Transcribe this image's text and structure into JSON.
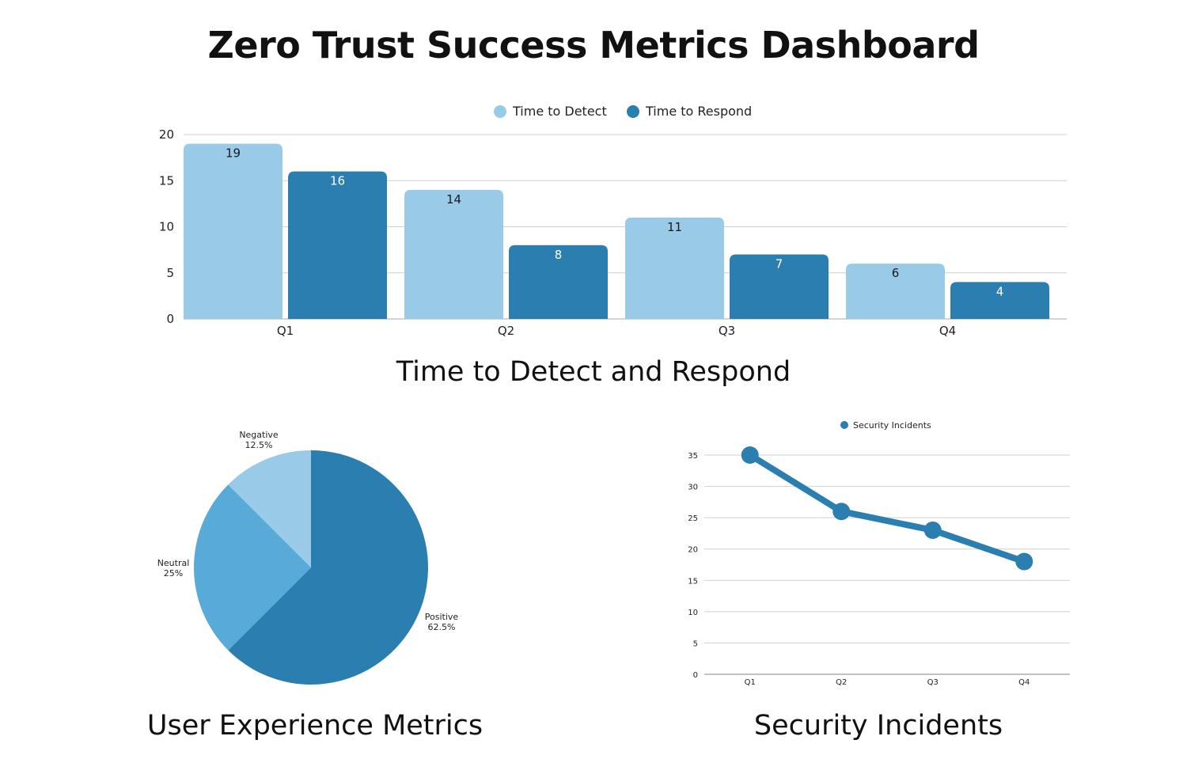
{
  "title": "Zero Trust Success Metrics Dashboard",
  "colors": {
    "light": "#99cbe8",
    "dark": "#2a7fb0",
    "mid": "#58aad8",
    "grid": "#cfcfcf"
  },
  "chart_data": [
    {
      "type": "bar",
      "title": "Time to Detect and Respond",
      "categories": [
        "Q1",
        "Q2",
        "Q3",
        "Q4"
      ],
      "series": [
        {
          "name": "Time to Detect",
          "values": [
            19,
            14,
            11,
            6
          ]
        },
        {
          "name": "Time to Respond",
          "values": [
            16,
            8,
            7,
            4
          ]
        }
      ],
      "ylim": [
        0,
        20
      ],
      "yticks": [
        0,
        5,
        10,
        15,
        20
      ],
      "legend": "top-center",
      "grid": true
    },
    {
      "type": "pie",
      "title": "User Experience Metrics",
      "slices": [
        {
          "label": "Positive",
          "percent_label": "62.5%",
          "value": 62.5
        },
        {
          "label": "Neutral",
          "percent_label": "25%",
          "value": 25
        },
        {
          "label": "Negative",
          "percent_label": "12.5%",
          "value": 12.5
        }
      ]
    },
    {
      "type": "line",
      "title": "Security Incidents",
      "categories": [
        "Q1",
        "Q2",
        "Q3",
        "Q4"
      ],
      "series": [
        {
          "name": "Security Incidents",
          "values": [
            35,
            26,
            23,
            18
          ]
        }
      ],
      "ylim": [
        0,
        35
      ],
      "yticks": [
        0,
        5,
        10,
        15,
        20,
        25,
        30,
        35
      ],
      "legend": "top-center",
      "grid": true
    }
  ]
}
